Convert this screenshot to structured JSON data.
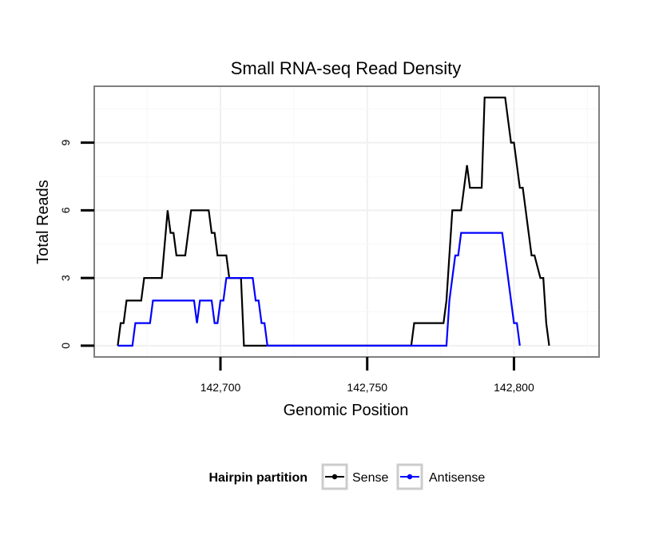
{
  "chart_data": {
    "type": "line",
    "title": "Small RNA-seq Read Density",
    "xlabel": "Genomic Position",
    "ylabel": "Total Reads",
    "xlim": [
      142657,
      142829
    ],
    "ylim": [
      -0.5,
      11.5
    ],
    "x_ticks": [
      142700,
      142750,
      142800
    ],
    "x_tick_labels": [
      "142,700",
      "142,750",
      "142,800"
    ],
    "y_ticks": [
      0,
      3,
      6,
      9
    ],
    "y_tick_labels": [
      "0",
      "3",
      "6",
      "9"
    ],
    "grid": true,
    "legend": {
      "title": "Hairpin partition",
      "placement": "bottom",
      "entries": [
        "Sense",
        "Antisense"
      ]
    },
    "series": [
      {
        "name": "Sense",
        "color": "#000000",
        "x": [
          142665,
          142666,
          142667,
          142668,
          142673,
          142674,
          142680,
          142682,
          142683,
          142684,
          142685,
          142688,
          142690,
          142691,
          142696,
          142697,
          142698,
          142699,
          142702,
          142703,
          142707,
          142708,
          142765,
          142766,
          142776,
          142777,
          142778,
          142779,
          142782,
          142783,
          142784,
          142785,
          142786,
          142789,
          142790,
          142797,
          142798,
          142799,
          142800,
          142802,
          142803,
          142804,
          142805,
          142806,
          142807,
          142809,
          142810,
          142811,
          142812
        ],
        "y": [
          0,
          1,
          1,
          2,
          2,
          3,
          3,
          6,
          5,
          5,
          4,
          4,
          6,
          6,
          6,
          5,
          5,
          4,
          4,
          3,
          3,
          0,
          0,
          1,
          1,
          2,
          4,
          6,
          6,
          7,
          8,
          7,
          7,
          7,
          11,
          11,
          10,
          9,
          9,
          7,
          7,
          6,
          5,
          4,
          4,
          3,
          3,
          1,
          0
        ]
      },
      {
        "name": "Antisense",
        "color": "#0000ff",
        "x": [
          142665,
          142670,
          142671,
          142676,
          142677,
          142691,
          142692,
          142693,
          142697,
          142698,
          142699,
          142700,
          142701,
          142702,
          142711,
          142712,
          142713,
          142714,
          142715,
          142716,
          142777,
          142778,
          142780,
          142781,
          142782,
          142796,
          142797,
          142798,
          142799,
          142800,
          142801,
          142802
        ],
        "y": [
          0,
          0,
          1,
          1,
          2,
          2,
          1,
          2,
          2,
          1,
          1,
          2,
          2,
          3,
          3,
          2,
          2,
          1,
          1,
          0,
          0,
          2,
          4,
          4,
          5,
          5,
          4,
          3,
          2,
          1,
          1,
          0
        ]
      }
    ]
  }
}
